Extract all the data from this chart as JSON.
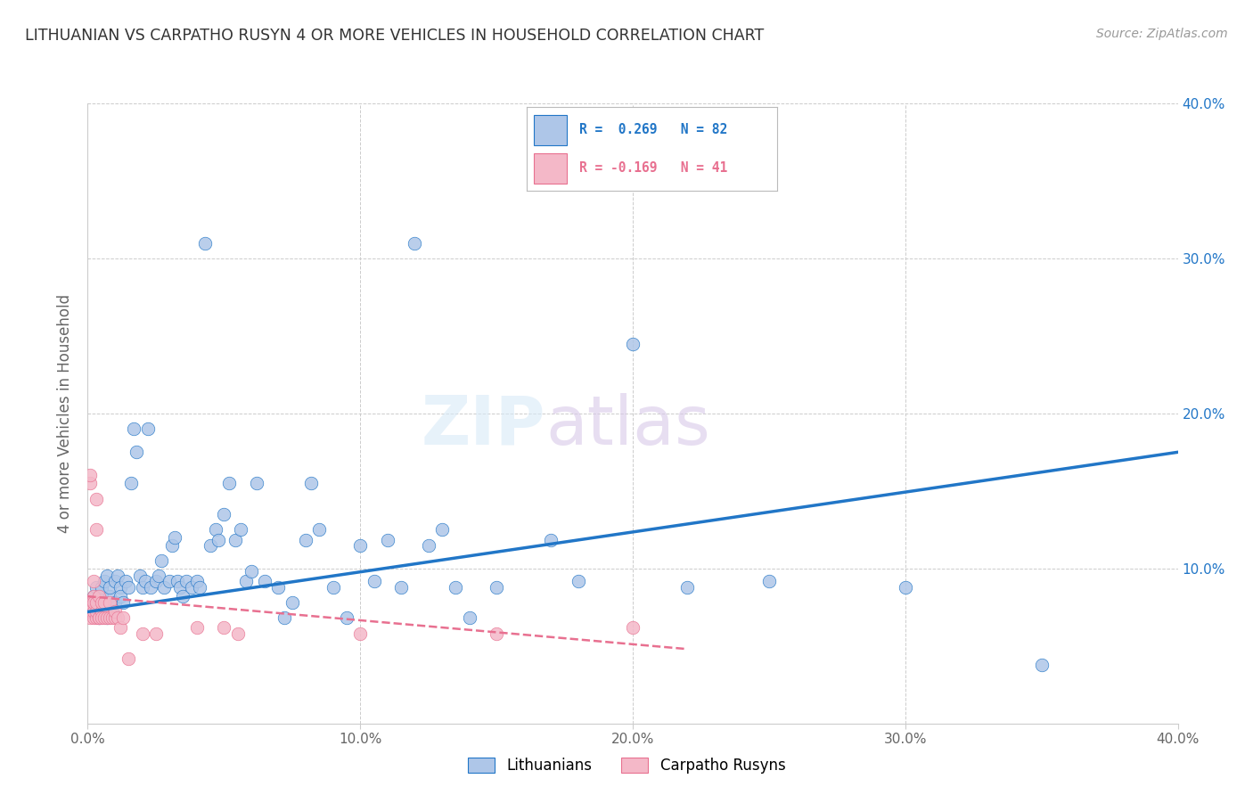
{
  "title": "LITHUANIAN VS CARPATHO RUSYN 4 OR MORE VEHICLES IN HOUSEHOLD CORRELATION CHART",
  "source": "Source: ZipAtlas.com",
  "ylabel": "4 or more Vehicles in Household",
  "xlim": [
    0.0,
    0.4
  ],
  "ylim": [
    0.0,
    0.4
  ],
  "xticks": [
    0.0,
    0.1,
    0.2,
    0.3,
    0.4
  ],
  "yticks": [
    0.0,
    0.1,
    0.2,
    0.3,
    0.4
  ],
  "r_blue": "R =  0.269",
  "n_blue": "N = 82",
  "r_pink": "R = -0.169",
  "n_pink": "N = 41",
  "blue_color": "#aec6e8",
  "pink_color": "#f4b8c8",
  "line_blue": "#2176c7",
  "line_pink": "#e87090",
  "background_color": "#ffffff",
  "grid_color": "#cccccc",
  "blue_scatter": [
    [
      0.001,
      0.075
    ],
    [
      0.002,
      0.082
    ],
    [
      0.003,
      0.072
    ],
    [
      0.003,
      0.088
    ],
    [
      0.004,
      0.068
    ],
    [
      0.004,
      0.078
    ],
    [
      0.005,
      0.082
    ],
    [
      0.005,
      0.088
    ],
    [
      0.006,
      0.092
    ],
    [
      0.006,
      0.078
    ],
    [
      0.007,
      0.095
    ],
    [
      0.007,
      0.068
    ],
    [
      0.008,
      0.082
    ],
    [
      0.008,
      0.088
    ],
    [
      0.009,
      0.072
    ],
    [
      0.01,
      0.078
    ],
    [
      0.01,
      0.092
    ],
    [
      0.011,
      0.095
    ],
    [
      0.012,
      0.088
    ],
    [
      0.012,
      0.082
    ],
    [
      0.013,
      0.078
    ],
    [
      0.014,
      0.092
    ],
    [
      0.015,
      0.088
    ],
    [
      0.016,
      0.155
    ],
    [
      0.017,
      0.19
    ],
    [
      0.018,
      0.175
    ],
    [
      0.019,
      0.095
    ],
    [
      0.02,
      0.088
    ],
    [
      0.021,
      0.092
    ],
    [
      0.022,
      0.19
    ],
    [
      0.023,
      0.088
    ],
    [
      0.025,
      0.092
    ],
    [
      0.026,
      0.095
    ],
    [
      0.027,
      0.105
    ],
    [
      0.028,
      0.088
    ],
    [
      0.03,
      0.092
    ],
    [
      0.031,
      0.115
    ],
    [
      0.032,
      0.12
    ],
    [
      0.033,
      0.092
    ],
    [
      0.034,
      0.088
    ],
    [
      0.035,
      0.082
    ],
    [
      0.036,
      0.092
    ],
    [
      0.038,
      0.088
    ],
    [
      0.04,
      0.092
    ],
    [
      0.041,
      0.088
    ],
    [
      0.043,
      0.31
    ],
    [
      0.045,
      0.115
    ],
    [
      0.047,
      0.125
    ],
    [
      0.048,
      0.118
    ],
    [
      0.05,
      0.135
    ],
    [
      0.052,
      0.155
    ],
    [
      0.054,
      0.118
    ],
    [
      0.056,
      0.125
    ],
    [
      0.058,
      0.092
    ],
    [
      0.06,
      0.098
    ],
    [
      0.062,
      0.155
    ],
    [
      0.065,
      0.092
    ],
    [
      0.07,
      0.088
    ],
    [
      0.072,
      0.068
    ],
    [
      0.075,
      0.078
    ],
    [
      0.08,
      0.118
    ],
    [
      0.082,
      0.155
    ],
    [
      0.085,
      0.125
    ],
    [
      0.09,
      0.088
    ],
    [
      0.095,
      0.068
    ],
    [
      0.1,
      0.115
    ],
    [
      0.105,
      0.092
    ],
    [
      0.11,
      0.118
    ],
    [
      0.115,
      0.088
    ],
    [
      0.12,
      0.31
    ],
    [
      0.125,
      0.115
    ],
    [
      0.13,
      0.125
    ],
    [
      0.135,
      0.088
    ],
    [
      0.14,
      0.068
    ],
    [
      0.15,
      0.088
    ],
    [
      0.17,
      0.118
    ],
    [
      0.18,
      0.092
    ],
    [
      0.2,
      0.245
    ],
    [
      0.22,
      0.088
    ],
    [
      0.25,
      0.092
    ],
    [
      0.3,
      0.088
    ],
    [
      0.35,
      0.038
    ]
  ],
  "pink_scatter": [
    [
      0.001,
      0.155
    ],
    [
      0.001,
      0.16
    ],
    [
      0.001,
      0.068
    ],
    [
      0.001,
      0.078
    ],
    [
      0.001,
      0.072
    ],
    [
      0.002,
      0.068
    ],
    [
      0.002,
      0.072
    ],
    [
      0.002,
      0.082
    ],
    [
      0.002,
      0.092
    ],
    [
      0.002,
      0.078
    ],
    [
      0.003,
      0.068
    ],
    [
      0.003,
      0.072
    ],
    [
      0.003,
      0.078
    ],
    [
      0.003,
      0.125
    ],
    [
      0.003,
      0.145
    ],
    [
      0.004,
      0.068
    ],
    [
      0.004,
      0.082
    ],
    [
      0.004,
      0.068
    ],
    [
      0.005,
      0.072
    ],
    [
      0.005,
      0.068
    ],
    [
      0.005,
      0.078
    ],
    [
      0.006,
      0.068
    ],
    [
      0.006,
      0.078
    ],
    [
      0.007,
      0.068
    ],
    [
      0.008,
      0.068
    ],
    [
      0.008,
      0.078
    ],
    [
      0.009,
      0.068
    ],
    [
      0.01,
      0.068
    ],
    [
      0.01,
      0.072
    ],
    [
      0.011,
      0.068
    ],
    [
      0.012,
      0.062
    ],
    [
      0.013,
      0.068
    ],
    [
      0.015,
      0.042
    ],
    [
      0.02,
      0.058
    ],
    [
      0.025,
      0.058
    ],
    [
      0.04,
      0.062
    ],
    [
      0.05,
      0.062
    ],
    [
      0.055,
      0.058
    ],
    [
      0.1,
      0.058
    ],
    [
      0.15,
      0.058
    ],
    [
      0.2,
      0.062
    ]
  ],
  "blue_trend_x": [
    0.0,
    0.4
  ],
  "blue_trend_y": [
    0.072,
    0.175
  ],
  "pink_trend_x": [
    0.0,
    0.22
  ],
  "pink_trend_y": [
    0.082,
    0.048
  ]
}
